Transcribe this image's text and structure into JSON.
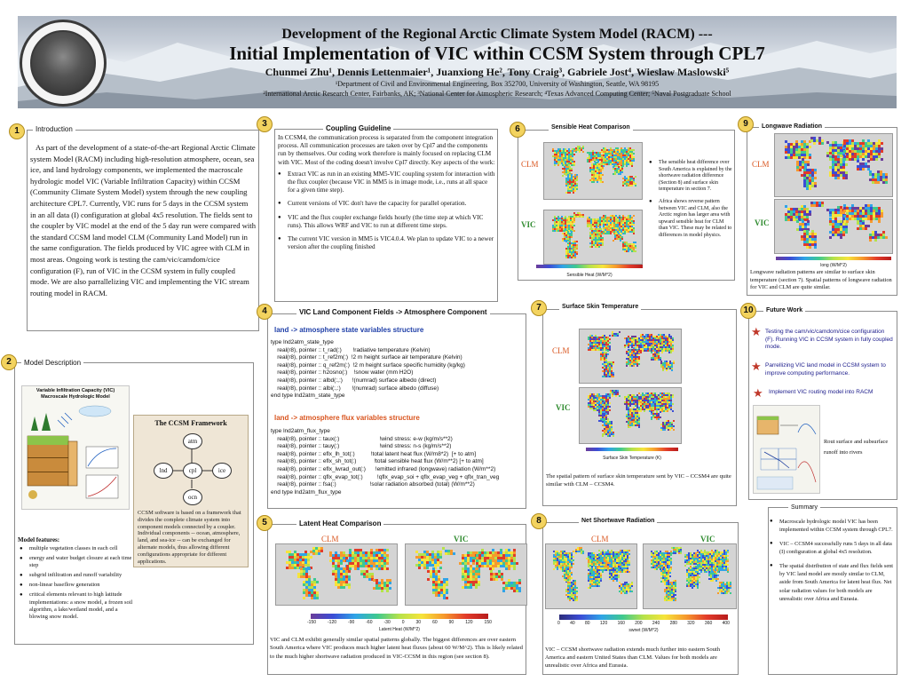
{
  "header": {
    "title_line1": "Development of the Regional Arctic Climate System Model (RACM) ---",
    "title_line2": "Initial Implementation of VIC within CCSM System through CPL7",
    "authors": "Chunmei Zhu¹, Dennis Lettenmaier¹, Juanxiong He², Tony Craig³, Gabriele Jost⁴, Wieslaw Maslowski⁵",
    "affil_line1": "¹Department of Civil and Environmental Engineering, Box 352700, University of Washington, Seattle, WA 98195",
    "affil_line2": "²International Arctic Research Center, Fairbanks, AK; ³National Center for Atmospheric Research; ⁴Texas Advanced Computing Center; ⁵Naval Postgraduate School",
    "seal_text": "UNIVERSITY OF WASHINGTON 1861"
  },
  "panels": {
    "intro": {
      "number": "1",
      "title": "Introduction",
      "body": "As part of the development of a state-of-the-art Regional Arctic Climate system Model (RACM) including high-resolution atmosphere, ocean, sea ice, and land hydrology components, we implemented the macroscale hydrologic model VIC (Variable Infiltration Capacity) within CCSM (Community Climate System Model) system through the new coupling architecture CPL7. Currently, VIC runs for 5 days in the CCSM system in an all data (I) configuration at global 4x5 resolution. The fields sent to the coupler by VIC model at the end of the 5 day run  were compared with the standard CCSM land model CLM (Community Land Model) run in the same configuration. The fields produced by VIC agree with CLM in most areas. Ongoing work is testing the cam/vic/camdom/cice configuration (F), run of VIC in the CCSM system in fully coupled mode.  We are also parrallelizing VIC and implementing the VIC stream routing model in RACM."
    },
    "model": {
      "number": "2",
      "title": "Model Description",
      "vic_fig_title": "Variable Infiltration Capacity (VIC) Macroscale Hydrologic Model",
      "ccsm_title": "The CCSM Framework",
      "nodes": [
        "atm",
        "lnd",
        "cpl",
        "ice",
        "ocn"
      ],
      "ccsm_text": "CCSM software is based on a framework that divides the complete climate system into component models connected by a coupler. Individual components -- ocean, atmosphere, land, and sea-ice -- can be exchanged for alternate models, thus allowing different configurations appropriate for different applications.",
      "features_title": "Model features:",
      "features": [
        "multiple vegetation classes in each cell",
        "energy and water budget closure at each time step",
        "subgrid infiltration and runoff variability",
        "non-linear baseflow generation",
        "critical elements relevant to high latitude implementations: a snow model, a frozen soil algorithm, a lake/wetland model, and a blowing snow model."
      ]
    },
    "coupling": {
      "number": "3",
      "title": "Coupling Guideline",
      "intro": "In CCSM4, the communication process is separated from the component integration process. All communication processes are taken over by Cpl7 and the components run by themselves. Our coding work therefore is mainly focused on replacing CLM with VIC. Most of the coding doesn't involve Cpl7 directly.  Key aspects of the work:",
      "bullets": [
        "Extract VIC as run in an existing MM5-VIC coupling system for interaction with the flux coupler (because VIC in MM5 is in image mode, i.e., runs at all space for a given time step).",
        "Current versions of VIC don't have the capacity for parallel operation.",
        "VIC and the flux coupler exchange fields hourly (the time step at which VIC runs). This allows WRF and VIC to run at different time steps.",
        "The current VIC version in MM5 is VIC4.0.4. We plan to update VIC to a newer version after the coupling finished"
      ]
    },
    "vic_land": {
      "number": "4",
      "title": "VIC Land Component  Fields -> Atmosphere Component",
      "head1": "land -> atmosphere state variables structure",
      "code1": "type lnd2atm_state_type\n    real(r8), pointer :: t_rad(:)       !radiative temperature (Kelvin)\n    real(r8), pointer :: t_ref2m(:)  !2 m height surface air temperature (Kelvin)\n    real(r8), pointer :: q_ref2m(:)  !2 m height surface specific humidity (kg/kg)\n    real(r8), pointer :: h2osno(:)    !snow water (mm H2O)\n    real(r8), pointer :: albd(:,:)      !(numrad) surface albedo (direct)\n    real(r8), pointer :: albi(:,:)       !(numrad) surface albedo (diffuse)\nend type lnd2atm_state_type",
      "head2": "land -> atmosphere flux variables structure",
      "code2": "type lnd2atm_flux_type\n    real(r8), pointer :: taux(:)                         !wind stress: e-w (kg/m/s**2)\n    real(r8), pointer :: tauy(:)                         !wind stress: n-s (kg/m/s**2)\n    real(r8), pointer :: eflx_lh_tot(:)          !total latent heat flux (W/m8*2)  [+ to atm]\n    real(r8), pointer :: eflx_sh_tot(:)           !total sensible heat flux (W/m**2) [+ to atm]\n    real(r8), pointer :: eflx_lwrad_out(:)      !emitted infrared (longwave) radiation (W/m**2)\n    real(r8), pointer :: qflx_evap_tot(:)         !qflx_evap_soi + qflx_evap_veg + qflx_tran_veg\n    real(r8), pointer :: fsa(:)                     !solar radiation absorbed (total) (W/m**2)\nend type lnd2atm_flux_type"
    },
    "latent": {
      "number": "5",
      "title": "Latent Heat Comparison",
      "label_clm": "CLM",
      "label_vic": "VIC",
      "cb_ticks": [
        "-150",
        "-120",
        "-90",
        "-60",
        "-30",
        "0",
        "30",
        "60",
        "90",
        "120",
        "150"
      ],
      "cb_label": "Latent Heat (W/M^2)",
      "caption": "VIC and CLM exhibit generally similar spatial patterns globally. The biggest differences are over eastern South America where VIC produces much higher latent heat fluxes (about 60 W/M^2). This is likely related to the much higher shortwave radiation produced in VIC-CCSM in this region (see section 8)."
    },
    "sensible": {
      "number": "6",
      "title": "Sensible Heat Comparison",
      "label_clm": "CLM",
      "label_vic": "VIC",
      "cb_ticks": [
        "-150",
        "-120",
        "-90",
        "-60",
        "-30",
        "0",
        "30",
        "60",
        "90",
        "120",
        "150"
      ],
      "cb_label": "Sensible Heat (W/M^2)",
      "notes": [
        "The sensible heat difference over South America is explained by the shortwave radiation difference (Section 8) and surface skin temperature in section 7.",
        "Africa shows reverse pattern between VIC and CLM, also the Arctic region has larger area with upward sensible heat for CLM than VIC. These may be related to differences in model physics."
      ]
    },
    "skin": {
      "number": "7",
      "title": "Surface Skin Temperature",
      "label_clm": "CLM",
      "label_vic": "VIC",
      "cb_label": "Surface Skin Temperature (K)",
      "caption": "The spatial pattern of surface skin temperature sent by VIC – CCSM4 are quite similar with CLM – CCSM4."
    },
    "shortwave": {
      "number": "8",
      "title": "Net Shortwave Radiation",
      "label_clm": "CLM",
      "label_vic": "VIC",
      "cb_ticks": [
        "0",
        "40",
        "80",
        "120",
        "160",
        "200",
        "240",
        "280",
        "320",
        "360",
        "400"
      ],
      "cb_label": "swnet (W/M^2)",
      "caption": "VIC – CCSM shortwave radiation extends much further into eastern South America and eastern United States than CLM.  Values for both models are unrealistic over Africa and Eurasia."
    },
    "longwave": {
      "number": "9",
      "title": "Longwave Radiation",
      "label_clm": "CLM",
      "label_vic": "VIC",
      "cb_label": "long (W/M^2)",
      "caption": "Longwave radiation patterns are similar to surface skin temperature (section 7).  Spatial patterns of longwave radiation for VIC and CLM are quite similar."
    },
    "future": {
      "number": "10",
      "title": "Future Work",
      "items": [
        "Testing the cam/vic/camdom/cice configuration (F). Running VIC in CCSM system in fully coupled mode.",
        "Parrellizing VIC land model in CCSM system to improve computing performance.",
        "Implement VIC routing model into RACM"
      ],
      "routing_caption": "Rout surface and subsurface runoff into rivers"
    },
    "summary": {
      "title": "Summary",
      "items": [
        "Macroscale hydrologic model VIC has been implemented within CCSM system through CPL7.",
        "VIC – CCSM4 successfully runs 5 days in all data (I) configuration at global 4x5 resolution.",
        "The spatial distribution of state and flux fields sent by VIC land model are mostly similar to CLM, aside from South America for latent heat flux. Net solar radiation values for both models are unrealistic over Africa and Eurasia."
      ]
    }
  },
  "colors": {
    "number_badge": "#f3d35f",
    "label_red": "#d9541e",
    "label_green": "#2e8a2e",
    "code_head_blue": "#1f3fa8"
  }
}
